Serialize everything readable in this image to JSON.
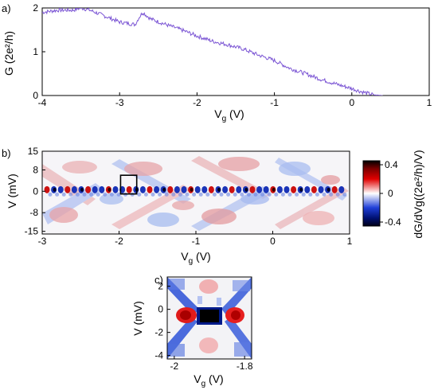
{
  "panels": [
    {
      "label": "a)",
      "chart_data": {
        "type": "line",
        "xlabel": "V",
        "xlabel_sub": "g",
        "xlabel_unit": " (V)",
        "ylabel": "G (2e²/h)",
        "xlim": [
          -4,
          1
        ],
        "ylim": [
          0,
          2
        ],
        "xticks": [
          "-4",
          "-3",
          "-2",
          "-1",
          "0",
          "1"
        ],
        "yticks": [
          "0",
          "1",
          "2"
        ],
        "line_color": "#7b55d4",
        "series": [
          {
            "x": [
              -4.0,
              -3.8,
              -3.6,
              -3.5,
              -3.4,
              -3.2,
              -3.0,
              -2.8,
              -2.75,
              -2.7,
              -2.6,
              -2.4,
              -2.2,
              -2.0,
              -1.8,
              -1.6,
              -1.4,
              -1.2,
              -1.0,
              -0.8,
              -0.6,
              -0.4,
              -0.2,
              0.0,
              0.1,
              0.2,
              0.3,
              0.4
            ],
            "y": [
              1.9,
              1.95,
              1.95,
              2.0,
              1.96,
              1.82,
              1.68,
              1.62,
              1.78,
              1.9,
              1.75,
              1.62,
              1.5,
              1.36,
              1.24,
              1.16,
              1.06,
              0.92,
              0.8,
              0.62,
              0.5,
              0.37,
              0.26,
              0.16,
              0.1,
              0.05,
              0.01,
              0.0
            ]
          }
        ]
      }
    },
    {
      "label": "b)",
      "chart_data": {
        "type": "heatmap",
        "xlabel": "V",
        "xlabel_sub": "g",
        "xlabel_unit": " (V)",
        "ylabel": "V (mV)",
        "xlim": [
          -3,
          1
        ],
        "ylim": [
          -16,
          15
        ],
        "xticks": [
          "-3",
          "-2",
          "-1",
          "0",
          "1"
        ],
        "yticks": [
          "15",
          "8",
          "0",
          "-8",
          "-15"
        ],
        "zlim": [
          -0.4,
          0.4
        ],
        "highlight_box": {
          "x": [
            -1.98,
            -1.77
          ],
          "y": [
            -1,
            6
          ]
        }
      }
    },
    {
      "label": "c)",
      "chart_data": {
        "type": "heatmap",
        "xlabel": "V",
        "xlabel_sub": "g",
        "xlabel_unit": " (V)",
        "ylabel": "V (mV)",
        "xlim": [
          -2.02,
          -1.78
        ],
        "ylim": [
          -4.3,
          2.8
        ],
        "xticks": [
          "-2",
          "-1.8"
        ],
        "yticks": [
          "2",
          "0",
          "-2",
          "-4"
        ],
        "zlim": [
          -0.4,
          0.4
        ]
      }
    }
  ],
  "colorbar": {
    "label": "dG/dVg((2e²/h)/V)",
    "ticks": [
      "0.4",
      "0",
      "-0.4"
    ],
    "colors": [
      "#000000",
      "#cc0000",
      "#ffffff",
      "#0033cc",
      "#000022"
    ]
  }
}
